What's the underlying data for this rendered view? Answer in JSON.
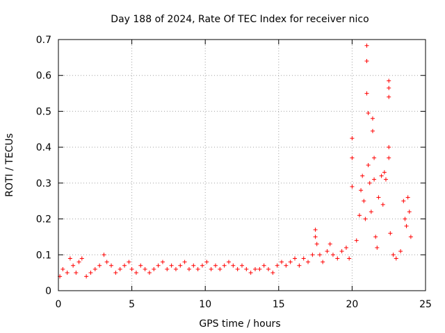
{
  "chart_data": {
    "type": "scatter",
    "title": "Day 188 of 2024, Rate Of TEC Index for receiver nico",
    "xlabel": "GPS time / hours",
    "ylabel": "ROTI / TECUs",
    "xlim": [
      0,
      25
    ],
    "ylim": [
      0,
      0.7
    ],
    "x_ticks": [
      "0",
      "5",
      "10",
      "15",
      "20",
      "25"
    ],
    "y_ticks": [
      "0",
      "0.1",
      "0.2",
      "0.3",
      "0.4",
      "0.5",
      "0.6",
      "0.7"
    ],
    "x_tick_values": [
      0,
      5,
      10,
      15,
      20,
      25
    ],
    "y_tick_values": [
      0,
      0.1,
      0.2,
      0.3,
      0.4,
      0.5,
      0.6,
      0.7
    ],
    "grid": true,
    "marker": "+",
    "color": "#ff0000",
    "series": [
      {
        "name": "ROTI",
        "points": [
          [
            0.1,
            0.04
          ],
          [
            0.3,
            0.06
          ],
          [
            0.6,
            0.05
          ],
          [
            0.8,
            0.09
          ],
          [
            1.0,
            0.07
          ],
          [
            1.2,
            0.05
          ],
          [
            1.4,
            0.08
          ],
          [
            1.6,
            0.09
          ],
          [
            1.9,
            0.04
          ],
          [
            2.2,
            0.05
          ],
          [
            2.5,
            0.06
          ],
          [
            2.8,
            0.07
          ],
          [
            3.1,
            0.1
          ],
          [
            3.3,
            0.08
          ],
          [
            3.6,
            0.07
          ],
          [
            3.9,
            0.05
          ],
          [
            4.2,
            0.06
          ],
          [
            4.5,
            0.07
          ],
          [
            4.8,
            0.08
          ],
          [
            5.0,
            0.06
          ],
          [
            5.3,
            0.05
          ],
          [
            5.6,
            0.07
          ],
          [
            5.9,
            0.06
          ],
          [
            6.2,
            0.05
          ],
          [
            6.5,
            0.06
          ],
          [
            6.8,
            0.07
          ],
          [
            7.1,
            0.08
          ],
          [
            7.4,
            0.06
          ],
          [
            7.7,
            0.07
          ],
          [
            8.0,
            0.06
          ],
          [
            8.3,
            0.07
          ],
          [
            8.6,
            0.08
          ],
          [
            8.9,
            0.06
          ],
          [
            9.2,
            0.07
          ],
          [
            9.5,
            0.06
          ],
          [
            9.8,
            0.07
          ],
          [
            10.1,
            0.08
          ],
          [
            10.4,
            0.06
          ],
          [
            10.7,
            0.07
          ],
          [
            11.0,
            0.06
          ],
          [
            11.3,
            0.07
          ],
          [
            11.6,
            0.08
          ],
          [
            11.9,
            0.07
          ],
          [
            12.2,
            0.06
          ],
          [
            12.5,
            0.07
          ],
          [
            12.8,
            0.06
          ],
          [
            13.1,
            0.05
          ],
          [
            13.4,
            0.06
          ],
          [
            13.7,
            0.06
          ],
          [
            14.0,
            0.07
          ],
          [
            14.3,
            0.06
          ],
          [
            14.6,
            0.05
          ],
          [
            14.9,
            0.07
          ],
          [
            15.2,
            0.08
          ],
          [
            15.5,
            0.07
          ],
          [
            15.8,
            0.08
          ],
          [
            16.1,
            0.09
          ],
          [
            16.4,
            0.07
          ],
          [
            16.7,
            0.09
          ],
          [
            17.0,
            0.08
          ],
          [
            17.3,
            0.1
          ],
          [
            17.5,
            0.17
          ],
          [
            17.5,
            0.15
          ],
          [
            17.6,
            0.13
          ],
          [
            17.8,
            0.1
          ],
          [
            18.0,
            0.08
          ],
          [
            18.3,
            0.11
          ],
          [
            18.5,
            0.13
          ],
          [
            18.7,
            0.1
          ],
          [
            19.0,
            0.09
          ],
          [
            19.3,
            0.11
          ],
          [
            19.6,
            0.12
          ],
          [
            19.8,
            0.09
          ],
          [
            20.0,
            0.425
          ],
          [
            20.0,
            0.37
          ],
          [
            20.0,
            0.29
          ],
          [
            20.3,
            0.14
          ],
          [
            20.5,
            0.21
          ],
          [
            20.6,
            0.28
          ],
          [
            20.7,
            0.32
          ],
          [
            20.8,
            0.25
          ],
          [
            20.9,
            0.2
          ],
          [
            21.0,
            0.683
          ],
          [
            21.0,
            0.64
          ],
          [
            21.0,
            0.55
          ],
          [
            21.1,
            0.495
          ],
          [
            21.1,
            0.35
          ],
          [
            21.2,
            0.3
          ],
          [
            21.3,
            0.22
          ],
          [
            21.4,
            0.48
          ],
          [
            21.4,
            0.445
          ],
          [
            21.5,
            0.37
          ],
          [
            21.5,
            0.31
          ],
          [
            21.6,
            0.15
          ],
          [
            21.7,
            0.12
          ],
          [
            21.8,
            0.26
          ],
          [
            22.0,
            0.32
          ],
          [
            22.1,
            0.24
          ],
          [
            22.2,
            0.33
          ],
          [
            22.3,
            0.31
          ],
          [
            22.5,
            0.585
          ],
          [
            22.5,
            0.565
          ],
          [
            22.5,
            0.54
          ],
          [
            22.5,
            0.4
          ],
          [
            22.5,
            0.37
          ],
          [
            22.6,
            0.16
          ],
          [
            22.8,
            0.1
          ],
          [
            23.0,
            0.09
          ],
          [
            23.3,
            0.11
          ],
          [
            23.5,
            0.25
          ],
          [
            23.6,
            0.2
          ],
          [
            23.7,
            0.18
          ],
          [
            23.8,
            0.26
          ],
          [
            23.9,
            0.22
          ],
          [
            24.0,
            0.15
          ]
        ]
      }
    ]
  }
}
